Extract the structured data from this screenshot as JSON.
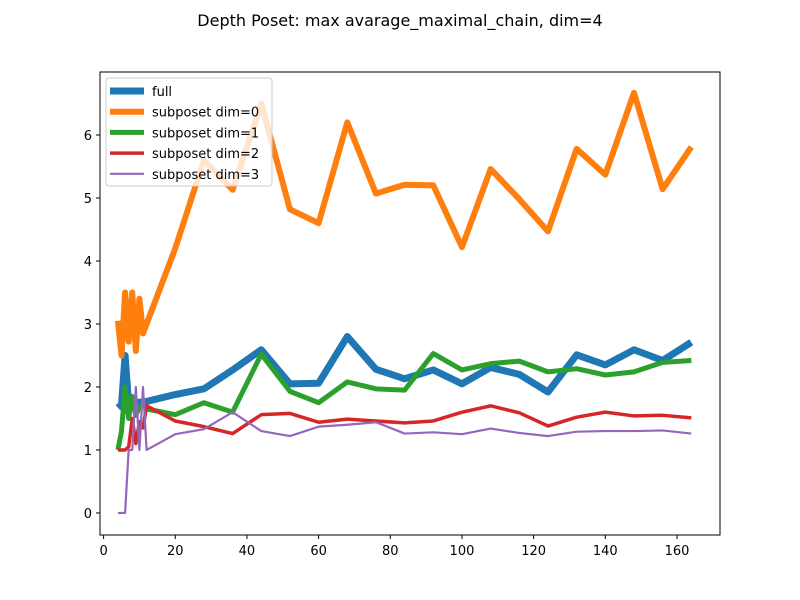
{
  "chart_data": {
    "type": "line",
    "title": "Depth Poset: max avarage_maximal_chain, dim=4",
    "xlabel": "",
    "ylabel": "",
    "xlim": [
      -1,
      172
    ],
    "ylim": [
      -0.35,
      7.0
    ],
    "xticks": [
      0,
      20,
      40,
      60,
      80,
      100,
      120,
      140,
      160
    ],
    "yticks": [
      0,
      1,
      2,
      3,
      4,
      5,
      6
    ],
    "grid": false,
    "legend_position": "top-left",
    "series": [
      {
        "name": "full",
        "color": "#1f77b4",
        "x": [
          4,
          5,
          6,
          7,
          8,
          9,
          10,
          11,
          12,
          20,
          28,
          36,
          44,
          52,
          60,
          68,
          76,
          84,
          92,
          100,
          108,
          116,
          124,
          132,
          140,
          148,
          156,
          164
        ],
        "y": [
          1.67,
          1.72,
          2.5,
          1.73,
          1.72,
          1.74,
          1.76,
          1.75,
          1.77,
          1.88,
          1.97,
          2.27,
          2.59,
          2.05,
          2.06,
          2.8,
          2.28,
          2.13,
          2.27,
          2.05,
          2.31,
          2.2,
          1.92,
          2.51,
          2.35,
          2.59,
          2.42,
          2.71
        ]
      },
      {
        "name": "subposet dim=0",
        "color": "#ff7f0e",
        "x": [
          4,
          5,
          6,
          7,
          8,
          9,
          10,
          11,
          12,
          20,
          28,
          36,
          44,
          52,
          60,
          68,
          76,
          84,
          92,
          100,
          108,
          116,
          124,
          132,
          140,
          148,
          156,
          164
        ],
        "y": [
          3.05,
          2.5,
          3.5,
          2.72,
          3.5,
          2.57,
          3.4,
          2.85,
          3.0,
          4.2,
          5.6,
          5.13,
          6.5,
          4.82,
          4.6,
          6.2,
          5.07,
          5.21,
          5.2,
          4.22,
          5.46,
          4.98,
          4.47,
          5.78,
          5.37,
          6.67,
          5.14,
          5.81
        ]
      },
      {
        "name": "subposet dim=1",
        "color": "#2ca02c",
        "x": [
          4,
          5,
          6,
          7,
          8,
          9,
          10,
          11,
          12,
          20,
          28,
          36,
          44,
          52,
          60,
          68,
          76,
          84,
          92,
          100,
          108,
          116,
          124,
          132,
          140,
          148,
          156,
          164
        ],
        "y": [
          1.0,
          1.3,
          2.0,
          1.5,
          1.85,
          1.55,
          1.68,
          1.72,
          1.65,
          1.56,
          1.75,
          1.6,
          2.52,
          1.93,
          1.75,
          2.08,
          1.97,
          1.95,
          2.53,
          2.27,
          2.37,
          2.41,
          2.24,
          2.29,
          2.19,
          2.24,
          2.39,
          2.42
        ]
      },
      {
        "name": "subposet dim=2",
        "color": "#d62728",
        "x": [
          4,
          5,
          6,
          7,
          8,
          9,
          10,
          11,
          12,
          20,
          28,
          36,
          44,
          52,
          60,
          68,
          76,
          84,
          92,
          100,
          108,
          116,
          124,
          132,
          140,
          148,
          156,
          164
        ],
        "y": [
          1.0,
          1.0,
          1.0,
          1.05,
          1.5,
          1.1,
          1.45,
          1.35,
          1.7,
          1.46,
          1.37,
          1.26,
          1.56,
          1.58,
          1.44,
          1.49,
          1.46,
          1.43,
          1.46,
          1.6,
          1.7,
          1.59,
          1.38,
          1.52,
          1.6,
          1.54,
          1.55,
          1.51
        ]
      },
      {
        "name": "subposet dim=3",
        "color": "#9467bd",
        "x": [
          4,
          5,
          6,
          7,
          8,
          9,
          10,
          11,
          12,
          20,
          28,
          36,
          44,
          52,
          60,
          68,
          76,
          84,
          92,
          100,
          108,
          116,
          124,
          132,
          140,
          148,
          156,
          164
        ],
        "y": [
          0.0,
          0.0,
          0.0,
          1.0,
          1.0,
          2.0,
          1.0,
          2.0,
          1.0,
          1.25,
          1.33,
          1.6,
          1.3,
          1.22,
          1.37,
          1.4,
          1.44,
          1.26,
          1.28,
          1.25,
          1.34,
          1.27,
          1.22,
          1.29,
          1.3,
          1.3,
          1.31,
          1.26
        ]
      }
    ]
  }
}
